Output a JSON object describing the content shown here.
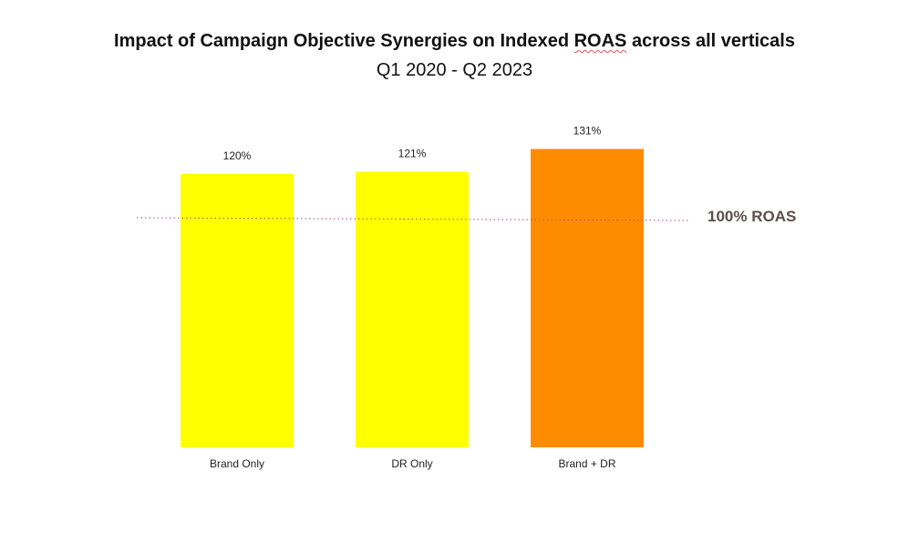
{
  "chart_data": {
    "type": "bar",
    "title_parts": {
      "before": "Impact of Campaign Objective Synergies on Indexed ",
      "highlight": "ROAS",
      "after": " across all verticals"
    },
    "subtitle": "Q1 2020 - Q2 2023",
    "categories": [
      "Brand Only",
      "DR Only",
      "Brand + DR"
    ],
    "values": [
      120,
      121,
      131
    ],
    "value_labels": [
      "120%",
      "121%",
      "131%"
    ],
    "colors": [
      "#ffff00",
      "#ffff00",
      "#ff8c00"
    ],
    "reference_line": {
      "value": 100,
      "label": "100% ROAS",
      "style": "dotted",
      "color": "#b04a7a"
    },
    "ylim": [
      0,
      140
    ],
    "grid": false,
    "legend": "none"
  }
}
